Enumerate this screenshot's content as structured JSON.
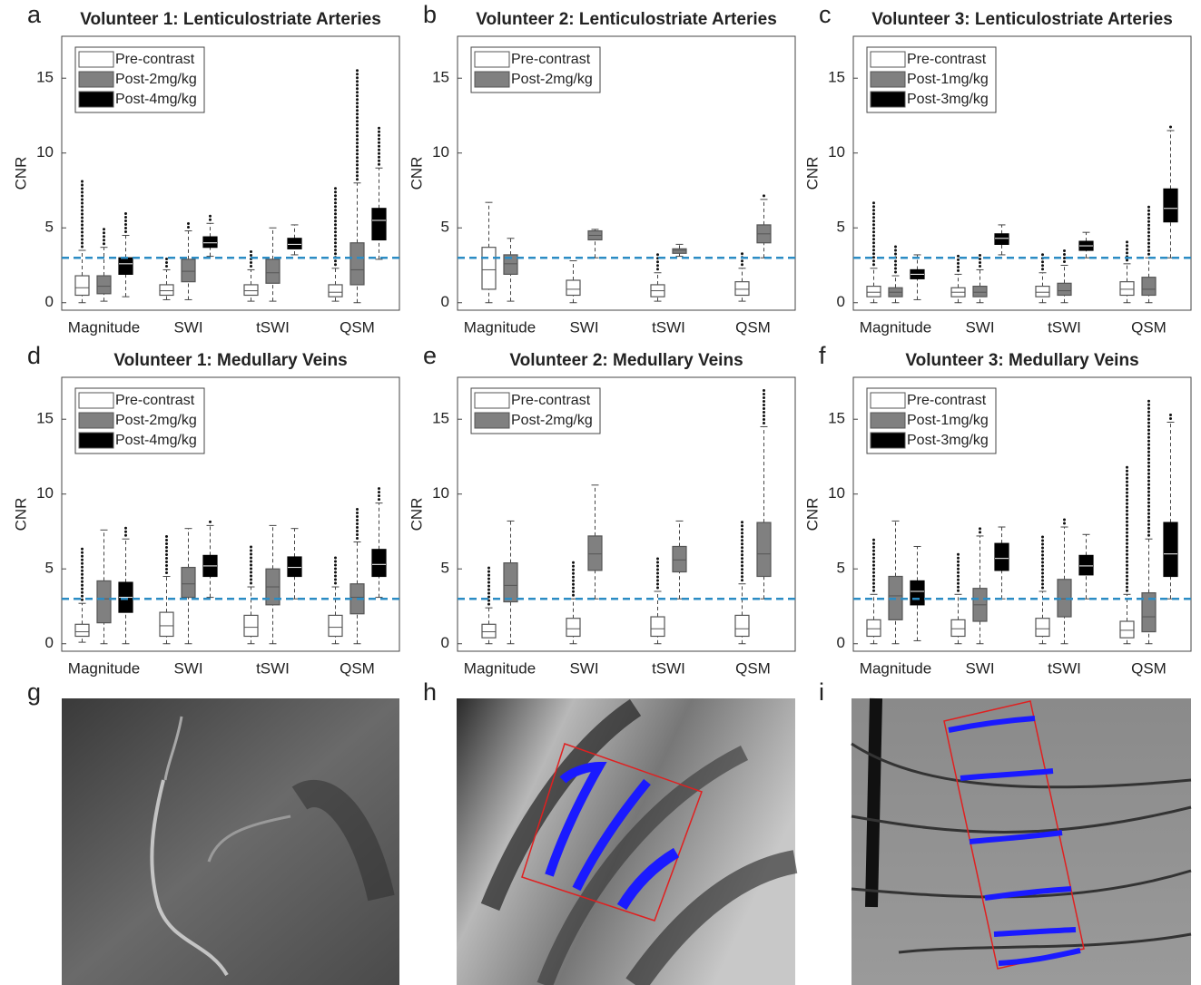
{
  "chart_data": [
    {
      "type": "box",
      "panel": "a",
      "title": "Volunteer 1: Lenticulostriate Arteries",
      "ylabel": "CNR",
      "categories": [
        "Magnitude",
        "SWI",
        "tSWI",
        "QSM"
      ],
      "ylim": [
        -0.5,
        17.8
      ],
      "yticks": [
        0,
        5,
        10,
        15
      ],
      "hline": 3,
      "hline_color": "#2b8cc4",
      "series": [
        {
          "name": "Pre-contrast",
          "color": "#ffffff",
          "min": [
            0,
            0.2,
            0.1,
            0.1
          ],
          "q1": [
            0.5,
            0.5,
            0.5,
            0.4
          ],
          "median": [
            1,
            0.8,
            0.8,
            0.7
          ],
          "q3": [
            1.8,
            1.2,
            1.2,
            1.2
          ],
          "max": [
            3.5,
            2.2,
            2.2,
            2.3
          ],
          "outlier_max": [
            8.3,
            3.0,
            3.5,
            7.8
          ]
        },
        {
          "name": "Post-2mg/kg",
          "color": "#808080",
          "min": [
            0.1,
            0.2,
            0.1,
            0
          ],
          "q1": [
            0.6,
            1.4,
            1.3,
            1.2
          ],
          "median": [
            1.1,
            2.1,
            2.0,
            2.2
          ],
          "q3": [
            1.8,
            2.9,
            2.9,
            4.0
          ],
          "max": [
            3.7,
            4.8,
            5.0,
            8.0
          ],
          "outlier_max": [
            5.1,
            5.3,
            null,
            15.6
          ]
        },
        {
          "name": "Post-4mg/kg",
          "color": "#000000",
          "min": [
            0.4,
            3.1,
            3.2,
            2.9
          ],
          "q1": [
            1.9,
            3.7,
            3.6,
            4.2
          ],
          "median": [
            2.6,
            4.0,
            3.9,
            5.5
          ],
          "q3": [
            3.0,
            4.4,
            4.3,
            6.3
          ],
          "max": [
            4.5,
            5.3,
            5.2,
            9.0
          ],
          "outlier_max": [
            6.0,
            5.9,
            null,
            11.9
          ]
        }
      ]
    },
    {
      "type": "box",
      "panel": "b",
      "title": "Volunteer 2: Lenticulostriate Arteries",
      "ylabel": "CNR",
      "categories": [
        "Magnitude",
        "SWI",
        "tSWI",
        "QSM"
      ],
      "ylim": [
        -0.5,
        17.8
      ],
      "yticks": [
        0,
        5,
        10,
        15
      ],
      "hline": 3,
      "hline_color": "#2b8cc4",
      "series": [
        {
          "name": "Pre-contrast",
          "color": "#ffffff",
          "min": [
            0,
            0,
            0.1,
            0.1
          ],
          "q1": [
            0.9,
            0.5,
            0.4,
            0.5
          ],
          "median": [
            2.2,
            0.9,
            0.8,
            0.9
          ],
          "q3": [
            3.7,
            1.5,
            1.2,
            1.4
          ],
          "max": [
            6.7,
            2.8,
            2.0,
            2.3
          ],
          "outlier_max": [
            null,
            null,
            3.3,
            3.3
          ]
        },
        {
          "name": "Post-2mg/kg",
          "color": "#808080",
          "min": [
            0.1,
            3.0,
            3.1,
            3.0
          ],
          "q1": [
            1.9,
            4.2,
            3.3,
            4.0
          ],
          "median": [
            2.6,
            4.5,
            3.5,
            4.6
          ],
          "q3": [
            3.2,
            4.8,
            3.6,
            5.2
          ],
          "max": [
            4.3,
            4.9,
            3.9,
            6.9
          ],
          "outlier_max": [
            null,
            null,
            null,
            7.3
          ]
        }
      ]
    },
    {
      "type": "box",
      "panel": "c",
      "title": "Volunteer 3: Lenticulostriate Arteries",
      "ylabel": "CNR",
      "categories": [
        "Magnitude",
        "SWI",
        "tSWI",
        "QSM"
      ],
      "ylim": [
        -0.5,
        17.8
      ],
      "yticks": [
        0,
        5,
        10,
        15
      ],
      "hline": 3,
      "hline_color": "#2b8cc4",
      "series": [
        {
          "name": "Pre-contrast",
          "color": "#ffffff",
          "min": [
            0,
            0,
            0,
            0
          ],
          "q1": [
            0.4,
            0.4,
            0.4,
            0.5
          ],
          "median": [
            0.7,
            0.7,
            0.7,
            0.9
          ],
          "q3": [
            1.1,
            1.0,
            1.1,
            1.4
          ],
          "max": [
            2.3,
            1.9,
            2.0,
            2.6
          ],
          "outlier_max": [
            6.9,
            3.3,
            3.3,
            4.2
          ]
        },
        {
          "name": "Post-1mg/kg",
          "color": "#808080",
          "min": [
            0,
            0,
            0,
            0
          ],
          "q1": [
            0.4,
            0.4,
            0.5,
            0.5
          ],
          "median": [
            0.7,
            0.7,
            0.8,
            0.9
          ],
          "q3": [
            1.0,
            1.1,
            1.3,
            1.7
          ],
          "max": [
            1.8,
            2.2,
            2.5,
            3.0
          ],
          "outlier_max": [
            3.8,
            3.2,
            3.7,
            6.4
          ]
        },
        {
          "name": "Post-3mg/kg",
          "color": "#000000",
          "min": [
            0.2,
            3.2,
            3.0,
            3.0
          ],
          "q1": [
            1.6,
            3.9,
            3.5,
            5.4
          ],
          "median": [
            1.9,
            4.3,
            3.8,
            6.3
          ],
          "q3": [
            2.2,
            4.6,
            4.1,
            7.6
          ],
          "max": [
            3.2,
            5.2,
            4.7,
            11.5
          ],
          "outlier_max": [
            null,
            null,
            null,
            11.9
          ]
        }
      ]
    },
    {
      "type": "box",
      "panel": "d",
      "title": "Volunteer 1: Medullary Veins",
      "ylabel": "CNR",
      "categories": [
        "Magnitude",
        "SWI",
        "tSWI",
        "QSM"
      ],
      "ylim": [
        -0.5,
        17.8
      ],
      "yticks": [
        0,
        5,
        10,
        15
      ],
      "hline": 3,
      "hline_color": "#2b8cc4",
      "series": [
        {
          "name": "Pre-contrast",
          "color": "#ffffff",
          "min": [
            0.1,
            0,
            0,
            0
          ],
          "q1": [
            0.5,
            0.5,
            0.5,
            0.5
          ],
          "median": [
            0.8,
            1.2,
            1.1,
            1.1
          ],
          "q3": [
            1.3,
            2.1,
            1.9,
            1.9
          ],
          "max": [
            2.7,
            4.5,
            3.8,
            3.8
          ],
          "outlier_max": [
            6.5,
            7.2,
            6.6,
            5.8
          ]
        },
        {
          "name": "Post-2mg/kg",
          "color": "#808080",
          "min": [
            0,
            0,
            0,
            0
          ],
          "q1": [
            1.4,
            3.1,
            2.6,
            2.0
          ],
          "median": [
            3.0,
            4.0,
            3.8,
            3.1
          ],
          "q3": [
            4.2,
            5.1,
            5.0,
            4.0
          ],
          "max": [
            7.6,
            7.7,
            7.9,
            6.8
          ],
          "outlier_max": [
            null,
            null,
            null,
            9.2
          ]
        },
        {
          "name": "Post-4mg/kg",
          "color": "#000000",
          "min": [
            0,
            3.1,
            3.0,
            3.1
          ],
          "q1": [
            2.1,
            4.5,
            4.5,
            4.5
          ],
          "median": [
            3.1,
            5.2,
            5.1,
            5.3
          ],
          "q3": [
            4.1,
            5.9,
            5.8,
            6.3
          ],
          "max": [
            7.0,
            7.9,
            7.7,
            9.4
          ],
          "outlier_max": [
            7.8,
            8.2,
            null,
            10.6
          ]
        }
      ]
    },
    {
      "type": "box",
      "panel": "e",
      "title": "Volunteer 2: Medullary Veins",
      "ylabel": "CNR",
      "categories": [
        "Magnitude",
        "SWI",
        "tSWI",
        "QSM"
      ],
      "ylim": [
        -0.5,
        17.8
      ],
      "yticks": [
        0,
        5,
        10,
        15
      ],
      "hline": 3,
      "hline_color": "#2b8cc4",
      "series": [
        {
          "name": "Pre-contrast",
          "color": "#ffffff",
          "min": [
            0,
            0,
            0,
            0
          ],
          "q1": [
            0.4,
            0.5,
            0.5,
            0.5
          ],
          "median": [
            0.8,
            1.0,
            1.0,
            1.0
          ],
          "q3": [
            1.3,
            1.7,
            1.8,
            1.9
          ],
          "max": [
            2.4,
            3.0,
            3.5,
            4.0
          ],
          "outlier_max": [
            5.2,
            5.6,
            5.8,
            8.2
          ]
        },
        {
          "name": "Post-2mg/kg",
          "color": "#808080",
          "min": [
            0,
            3.0,
            3.0,
            3.0
          ],
          "q1": [
            2.8,
            4.9,
            4.8,
            4.5
          ],
          "median": [
            3.9,
            6.0,
            5.6,
            6.0
          ],
          "q3": [
            5.4,
            7.2,
            6.5,
            8.1
          ],
          "max": [
            8.2,
            10.6,
            8.2,
            14.5
          ],
          "outlier_max": [
            null,
            null,
            null,
            17.1
          ]
        }
      ]
    },
    {
      "type": "box",
      "panel": "f",
      "title": "Volunteer 3: Medullary Veins",
      "ylabel": "CNR",
      "categories": [
        "Magnitude",
        "SWI",
        "tSWI",
        "QSM"
      ],
      "ylim": [
        -0.5,
        17.8
      ],
      "yticks": [
        0,
        5,
        10,
        15
      ],
      "hline": 3,
      "hline_color": "#2b8cc4",
      "series": [
        {
          "name": "Pre-contrast",
          "color": "#ffffff",
          "min": [
            0,
            0,
            0,
            0
          ],
          "q1": [
            0.5,
            0.5,
            0.5,
            0.4
          ],
          "median": [
            1.0,
            1.0,
            1.0,
            0.9
          ],
          "q3": [
            1.6,
            1.6,
            1.7,
            1.5
          ],
          "max": [
            3.3,
            3.3,
            3.5,
            3.3
          ],
          "outlier_max": [
            7.0,
            6.0,
            7.2,
            11.8
          ]
        },
        {
          "name": "Post-1mg/kg",
          "color": "#808080",
          "min": [
            0,
            0,
            0,
            0
          ],
          "q1": [
            1.6,
            1.5,
            1.8,
            0.8
          ],
          "median": [
            3.2,
            2.6,
            3.0,
            1.8
          ],
          "q3": [
            4.5,
            3.7,
            4.3,
            3.4
          ],
          "max": [
            8.2,
            7.2,
            7.8,
            7.0
          ],
          "outlier_max": [
            null,
            7.8,
            8.5,
            16.4
          ]
        },
        {
          "name": "Post-3mg/kg",
          "color": "#000000",
          "min": [
            0.2,
            3.0,
            3.0,
            3.0
          ],
          "q1": [
            2.6,
            4.9,
            4.6,
            4.5
          ],
          "median": [
            3.5,
            5.7,
            5.2,
            6.0
          ],
          "q3": [
            4.2,
            6.7,
            5.9,
            8.1
          ],
          "max": [
            6.5,
            7.8,
            7.3,
            14.8
          ],
          "outlier_max": [
            null,
            null,
            null,
            15.3
          ]
        }
      ]
    }
  ],
  "images": [
    {
      "panel": "g"
    },
    {
      "panel": "h"
    },
    {
      "panel": "i"
    }
  ]
}
